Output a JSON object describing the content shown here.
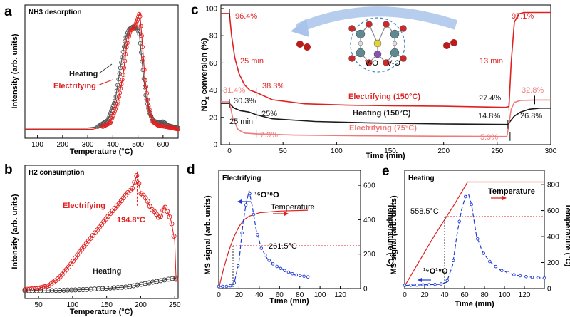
{
  "colors": {
    "red": "#e0201f",
    "black": "#1a1a1a",
    "pink": "#f07a7a",
    "blue": "#1f3bd4",
    "gray": "#555555"
  },
  "chart_data": [
    {
      "panel": "a",
      "type": "line",
      "title": "NH3 desorption",
      "xlabel": "Temperature (°C)",
      "ylabel": "Intensity (arb. units)",
      "xlim": [
        50,
        660
      ],
      "xticks": [
        "100",
        "200",
        "300",
        "400",
        "500",
        "600"
      ],
      "series": [
        {
          "name": "Heating",
          "points": [
            [
              50,
              0.08
            ],
            [
              300,
              0.08
            ],
            [
              340,
              0.09
            ],
            [
              380,
              0.14
            ],
            [
              410,
              0.3
            ],
            [
              430,
              0.55
            ],
            [
              450,
              0.78
            ],
            [
              465,
              0.85
            ],
            [
              480,
              0.87
            ],
            [
              495,
              0.86
            ],
            [
              505,
              0.82
            ],
            [
              515,
              0.62
            ],
            [
              530,
              0.34
            ],
            [
              545,
              0.2
            ],
            [
              560,
              0.14
            ],
            [
              580,
              0.12
            ],
            [
              600,
              0.13
            ],
            [
              620,
              0.1
            ],
            [
              660,
              0.08
            ]
          ]
        },
        {
          "name": "Electrifying",
          "points": [
            [
              50,
              0.07
            ],
            [
              320,
              0.07
            ],
            [
              360,
              0.09
            ],
            [
              390,
              0.12
            ],
            [
              420,
              0.28
            ],
            [
              440,
              0.48
            ],
            [
              455,
              0.72
            ],
            [
              470,
              0.84
            ],
            [
              485,
              0.86
            ],
            [
              497,
              0.92
            ],
            [
              507,
              0.98
            ],
            [
              515,
              0.8
            ],
            [
              528,
              0.46
            ],
            [
              542,
              0.25
            ],
            [
              558,
              0.13
            ],
            [
              580,
              0.1
            ],
            [
              610,
              0.09
            ],
            [
              660,
              0.07
            ]
          ]
        }
      ]
    },
    {
      "panel": "b",
      "type": "scatter",
      "title": "H2 consumption",
      "xlabel": "Temperature (°C)",
      "ylabel": "Intensity (arb. units)",
      "xlim": [
        30,
        255
      ],
      "xticks": [
        "50",
        "100",
        "150",
        "200",
        "250"
      ],
      "annotation": "194.8°C",
      "series": [
        {
          "name": "Electrifying",
          "points": [
            [
              30,
              0.07
            ],
            [
              50,
              0.08
            ],
            [
              65,
              0.1
            ],
            [
              80,
              0.16
            ],
            [
              95,
              0.25
            ],
            [
              110,
              0.36
            ],
            [
              125,
              0.46
            ],
            [
              140,
              0.56
            ],
            [
              155,
              0.66
            ],
            [
              168,
              0.74
            ],
            [
              180,
              0.82
            ],
            [
              188,
              0.86
            ],
            [
              194.8,
              0.97
            ],
            [
              200,
              0.82
            ],
            [
              205,
              0.8
            ],
            [
              210,
              0.76
            ],
            [
              215,
              0.7
            ],
            [
              220,
              0.68
            ],
            [
              228,
              0.62
            ],
            [
              235,
              0.72
            ],
            [
              240,
              0.67
            ],
            [
              245,
              0.6
            ],
            [
              250,
              0.45
            ],
            [
              252,
              0.15
            ]
          ]
        },
        {
          "name": "Heating",
          "points": [
            [
              30,
              0.06
            ],
            [
              60,
              0.06
            ],
            [
              90,
              0.065
            ],
            [
              120,
              0.07
            ],
            [
              150,
              0.08
            ],
            [
              180,
              0.09
            ],
            [
              200,
              0.11
            ],
            [
              220,
              0.13
            ],
            [
              240,
              0.15
            ],
            [
              252,
              0.16
            ]
          ]
        }
      ]
    },
    {
      "panel": "c",
      "type": "line",
      "xlabel": "Time (min)",
      "ylabel": "NOx conversion (%)",
      "xlim": [
        -8,
        300
      ],
      "ylim": [
        0,
        100
      ],
      "xticks": [
        "0",
        "50",
        "100",
        "150",
        "200",
        "250",
        "300"
      ],
      "yticks": [
        "0",
        "20",
        "40",
        "60",
        "80",
        "100"
      ],
      "series": [
        {
          "name": "Electrifying (150°C)",
          "points": [
            [
              -8,
              96.4
            ],
            [
              0,
              96.4
            ],
            [
              2,
              80
            ],
            [
              5,
              64
            ],
            [
              9,
              52
            ],
            [
              14,
              44
            ],
            [
              19,
              40
            ],
            [
              25,
              38.3
            ],
            [
              40,
              33
            ],
            [
              70,
              30
            ],
            [
              110,
              29
            ],
            [
              150,
              28.6
            ],
            [
              200,
              28.2
            ],
            [
              258,
              27.4
            ],
            [
              261,
              28
            ],
            [
              263,
              60
            ],
            [
              266,
              90
            ],
            [
              270,
              96
            ],
            [
              275,
              97.1
            ],
            [
              300,
              97.1
            ]
          ]
        },
        {
          "name": "Heating (150°C)",
          "points": [
            [
              -8,
              30.3
            ],
            [
              0,
              30.3
            ],
            [
              4,
              27
            ],
            [
              10,
              25
            ],
            [
              18,
              24
            ],
            [
              25,
              22
            ],
            [
              40,
              19
            ],
            [
              80,
              17
            ],
            [
              130,
              16
            ],
            [
              200,
              15.2
            ],
            [
              260,
              14.8
            ],
            [
              262,
              17
            ],
            [
              266,
              21
            ],
            [
              272,
              24
            ],
            [
              280,
              26
            ],
            [
              290,
              26.8
            ],
            [
              300,
              26.8
            ]
          ]
        },
        {
          "name": "Electrifying (75°C)",
          "points": [
            [
              -8,
              31.4
            ],
            [
              0,
              31.4
            ],
            [
              3,
              20
            ],
            [
              8,
              11
            ],
            [
              14,
              8.5
            ],
            [
              25,
              7.9
            ],
            [
              60,
              7
            ],
            [
              120,
              6.5
            ],
            [
              200,
              6.1
            ],
            [
              259,
              5.9
            ],
            [
              261,
              15
            ],
            [
              263,
              26
            ],
            [
              266,
              31
            ],
            [
              272,
              32.5
            ],
            [
              285,
              32.8
            ],
            [
              300,
              32.8
            ]
          ]
        }
      ],
      "labels": {
        "p96": "96.4%",
        "t25": "25 min",
        "p383": "38.3%",
        "p314": "31.4%",
        "p303": "30.3%",
        "p25": "25%",
        "t25b": "25 min",
        "p79": "7.9%",
        "t13": "13 min",
        "p971": "97.1%",
        "p274": "27.4%",
        "p328": "32.8%",
        "p148": "14.8%",
        "p268": "26.8%",
        "p59": "5.9%",
        "vo": "V-O"
      }
    },
    {
      "panel": "d",
      "type": "line",
      "title": "Electrifying",
      "xlabel": "Time (min)",
      "ylabel": "MS signal (arb. units)",
      "ylabel2": "Temperature (°C)",
      "xlim": [
        0,
        140
      ],
      "xticks": [
        "0",
        "20",
        "40",
        "60",
        "80",
        "100",
        "120"
      ],
      "y2ticks": [
        "0",
        "200",
        "400",
        "600"
      ],
      "species": "16O18O",
      "annotation": "261.5°C",
      "temp_label": "Temperature",
      "series": [
        {
          "name": "16O18O",
          "points": [
            [
              0,
              0.02
            ],
            [
              10,
              0.02
            ],
            [
              15,
              0.04
            ],
            [
              20,
              0.25
            ],
            [
              24,
              0.62
            ],
            [
              27,
              0.8
            ],
            [
              30,
              0.92
            ],
            [
              33,
              0.78
            ],
            [
              37,
              0.55
            ],
            [
              42,
              0.38
            ],
            [
              48,
              0.28
            ],
            [
              55,
              0.22
            ],
            [
              65,
              0.17
            ],
            [
              75,
              0.13
            ],
            [
              88,
              0.11
            ]
          ]
        },
        {
          "name": "Temperature",
          "points": [
            [
              0,
              0
            ],
            [
              5,
              120
            ],
            [
              10,
              220
            ],
            [
              15,
              300
            ],
            [
              20,
              360
            ],
            [
              25,
              400
            ],
            [
              30,
              420
            ],
            [
              40,
              440
            ],
            [
              60,
              450
            ],
            [
              88,
              455
            ]
          ]
        }
      ]
    },
    {
      "panel": "e",
      "type": "line",
      "title": "Heating",
      "xlabel": "Time (min)",
      "ylabel": "MS signal (arb. units)",
      "ylabel2": "Temperature (°C)",
      "xlim": [
        0,
        140
      ],
      "xticks": [
        "0",
        "20",
        "40",
        "60",
        "80",
        "100",
        "120"
      ],
      "y2ticks": [
        "0",
        "200",
        "400",
        "600",
        "800"
      ],
      "species": "16O18O",
      "annotation": "558.5°C",
      "temp_label": "Temperature",
      "series": [
        {
          "name": "16O18O",
          "points": [
            [
              0,
              0.03
            ],
            [
              35,
              0.04
            ],
            [
              42,
              0.06
            ],
            [
              48,
              0.22
            ],
            [
              53,
              0.55
            ],
            [
              57,
              0.75
            ],
            [
              61,
              0.88
            ],
            [
              64,
              0.9
            ],
            [
              67,
              0.8
            ],
            [
              72,
              0.5
            ],
            [
              78,
              0.35
            ],
            [
              85,
              0.26
            ],
            [
              95,
              0.18
            ],
            [
              110,
              0.13
            ],
            [
              125,
              0.11
            ],
            [
              140,
              0.1
            ]
          ]
        },
        {
          "name": "Temperature",
          "points": [
            [
              0,
              20
            ],
            [
              10,
              150
            ],
            [
              20,
              280
            ],
            [
              30,
              410
            ],
            [
              40,
              530
            ],
            [
              50,
              650
            ],
            [
              60,
              780
            ],
            [
              63,
              820
            ],
            [
              140,
              820
            ]
          ]
        }
      ]
    }
  ]
}
